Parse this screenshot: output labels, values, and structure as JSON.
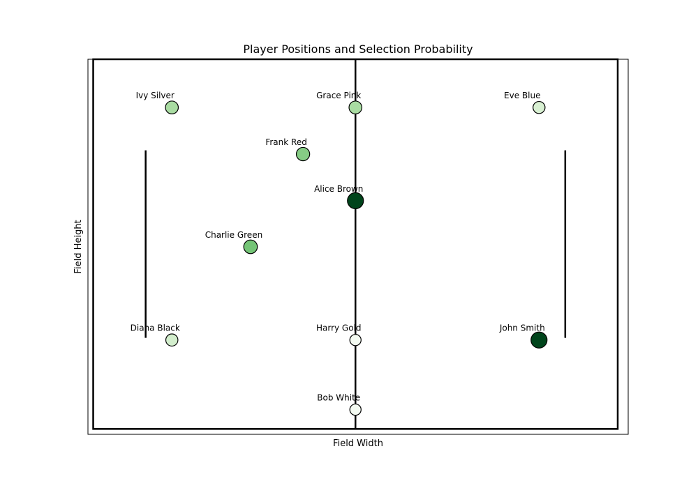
{
  "chart_data": {
    "type": "scatter",
    "title": "Player Positions and Selection Probability",
    "xlabel": "Field Width",
    "ylabel": "Field Height",
    "xlim": [
      -3,
      100
    ],
    "ylim": [
      -5,
      65
    ],
    "grid": false,
    "field": {
      "boundary": {
        "x0": -2,
        "x1": 98,
        "y0": -4,
        "y1": 65
      },
      "center_line_x": 48,
      "left_line_x": 8,
      "right_line_x": 88,
      "inner_lines_y": [
        13,
        48
      ]
    },
    "color_scale": {
      "low": "#ffffff",
      "high": "#00441b"
    },
    "points": [
      {
        "name": "Ivy Silver",
        "x": 13,
        "y": 56,
        "probability": 0.35
      },
      {
        "name": "Grace Pink",
        "x": 48,
        "y": 56,
        "probability": 0.35
      },
      {
        "name": "Eve Blue",
        "x": 83,
        "y": 56,
        "probability": 0.18
      },
      {
        "name": "Frank Red",
        "x": 38,
        "y": 47.3,
        "probability": 0.45
      },
      {
        "name": "Alice Brown",
        "x": 48,
        "y": 38.6,
        "probability": 1.0
      },
      {
        "name": "Charlie Green",
        "x": 28,
        "y": 30,
        "probability": 0.5
      },
      {
        "name": "Diana Black",
        "x": 13,
        "y": 12.6,
        "probability": 0.2
      },
      {
        "name": "Harry Gold",
        "x": 48,
        "y": 12.6,
        "probability": 0.02
      },
      {
        "name": "John Smith",
        "x": 83,
        "y": 12.6,
        "probability": 1.0
      },
      {
        "name": "Bob White",
        "x": 48,
        "y": -0.4,
        "probability": 0.02
      }
    ]
  }
}
